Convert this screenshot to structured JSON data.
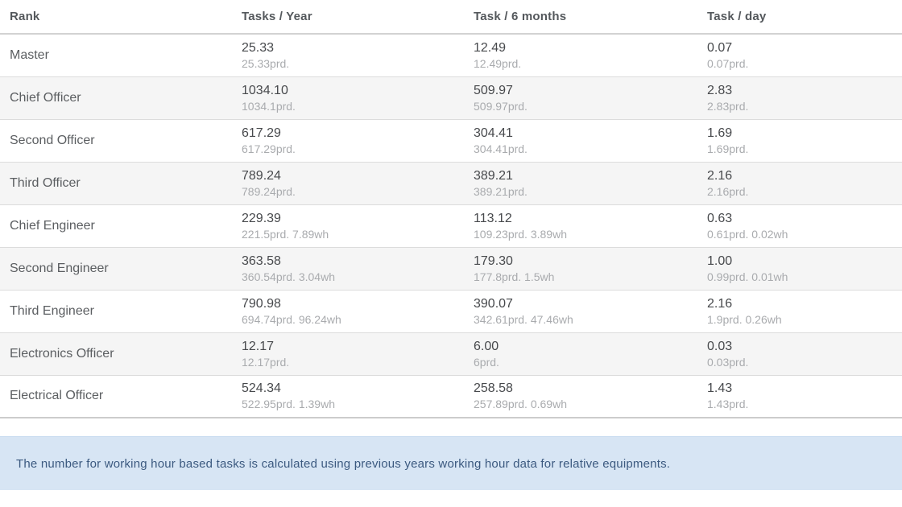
{
  "table": {
    "columns": [
      {
        "key": "rank",
        "label": "Rank"
      },
      {
        "key": "year",
        "label": "Tasks / Year"
      },
      {
        "key": "six_months",
        "label": "Task / 6 months"
      },
      {
        "key": "day",
        "label": "Task / day"
      }
    ],
    "rows": [
      {
        "rank": "Master",
        "year": {
          "value": "25.33",
          "detail": "25.33prd."
        },
        "six_months": {
          "value": "12.49",
          "detail": "12.49prd."
        },
        "day": {
          "value": "0.07",
          "detail": "0.07prd."
        }
      },
      {
        "rank": "Chief Officer",
        "year": {
          "value": "1034.10",
          "detail": "1034.1prd."
        },
        "six_months": {
          "value": "509.97",
          "detail": "509.97prd."
        },
        "day": {
          "value": "2.83",
          "detail": "2.83prd."
        }
      },
      {
        "rank": "Second Officer",
        "year": {
          "value": "617.29",
          "detail": "617.29prd."
        },
        "six_months": {
          "value": "304.41",
          "detail": "304.41prd."
        },
        "day": {
          "value": "1.69",
          "detail": "1.69prd."
        }
      },
      {
        "rank": "Third Officer",
        "year": {
          "value": "789.24",
          "detail": "789.24prd."
        },
        "six_months": {
          "value": "389.21",
          "detail": "389.21prd."
        },
        "day": {
          "value": "2.16",
          "detail": "2.16prd."
        }
      },
      {
        "rank": "Chief Engineer",
        "year": {
          "value": "229.39",
          "detail": "221.5prd. 7.89wh"
        },
        "six_months": {
          "value": "113.12",
          "detail": "109.23prd. 3.89wh"
        },
        "day": {
          "value": "0.63",
          "detail": "0.61prd. 0.02wh"
        }
      },
      {
        "rank": "Second Engineer",
        "year": {
          "value": "363.58",
          "detail": "360.54prd. 3.04wh"
        },
        "six_months": {
          "value": "179.30",
          "detail": "177.8prd. 1.5wh"
        },
        "day": {
          "value": "1.00",
          "detail": "0.99prd. 0.01wh"
        }
      },
      {
        "rank": "Third Engineer",
        "year": {
          "value": "790.98",
          "detail": "694.74prd. 96.24wh"
        },
        "six_months": {
          "value": "390.07",
          "detail": "342.61prd. 47.46wh"
        },
        "day": {
          "value": "2.16",
          "detail": "1.9prd. 0.26wh"
        }
      },
      {
        "rank": "Electronics Officer",
        "year": {
          "value": "12.17",
          "detail": "12.17prd."
        },
        "six_months": {
          "value": "6.00",
          "detail": "6prd."
        },
        "day": {
          "value": "0.03",
          "detail": "0.03prd."
        }
      },
      {
        "rank": "Electrical Officer",
        "year": {
          "value": "524.34",
          "detail": "522.95prd. 1.39wh"
        },
        "six_months": {
          "value": "258.58",
          "detail": "257.89prd. 0.69wh"
        },
        "day": {
          "value": "1.43",
          "detail": "1.43prd."
        }
      }
    ]
  },
  "note": {
    "text": "The number for working hour based tasks is calculated using previous years working hour data for relative equipments."
  },
  "colors": {
    "stripe": "#f5f5f5",
    "row_line": "#dcdcdc",
    "note_bg": "#d7e5f4",
    "note_text": "#3c5a80",
    "value_text": "#47494c",
    "detail_text": "#a9abae"
  }
}
